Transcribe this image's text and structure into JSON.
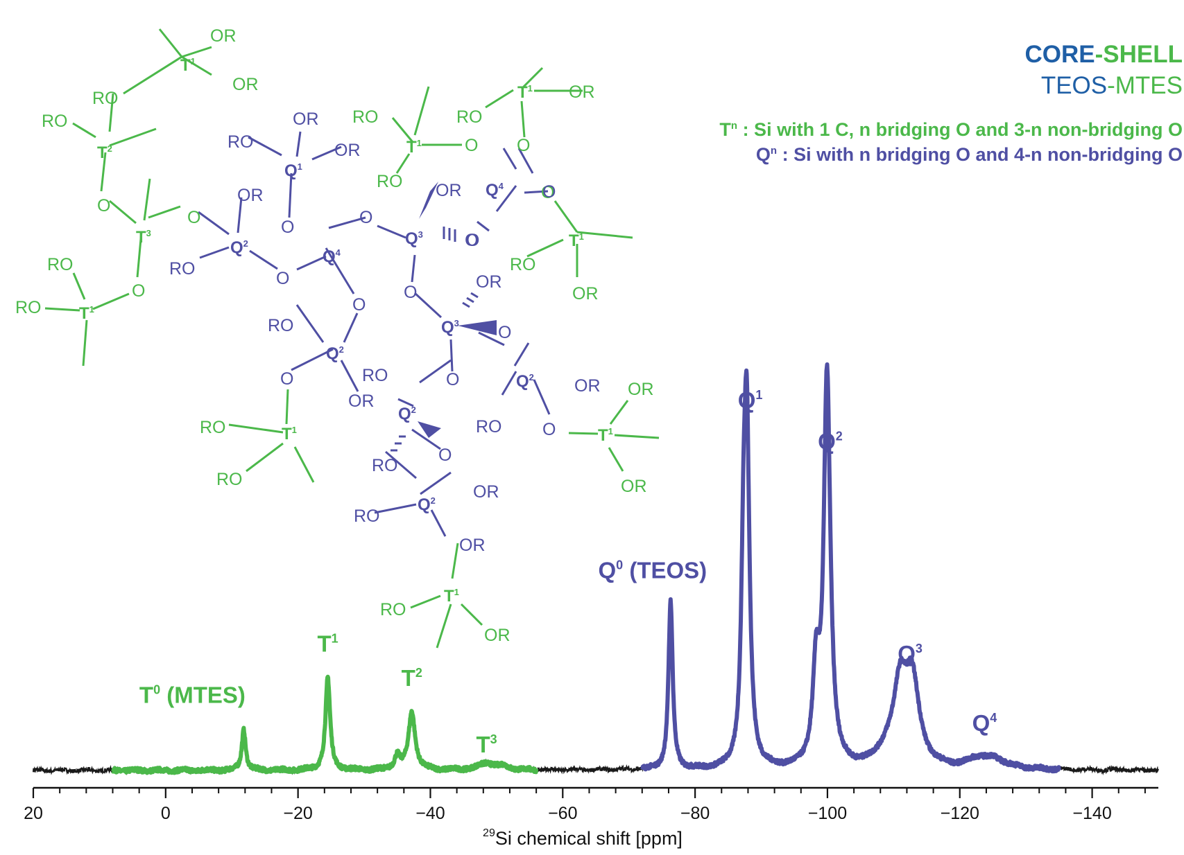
{
  "legend": {
    "title_core": "CORE",
    "title_dash": "-",
    "title_shell": "SHELL",
    "subtitle_a": "TEOS",
    "subtitle_dash": "-",
    "subtitle_b": "MTES",
    "t_def_sym": "T",
    "t_def_sup": "n",
    "t_def_text": " : Si with 1 C, n bridging O and 3-n non-bridging O",
    "q_def_sym": "Q",
    "q_def_sup": "n",
    "q_def_text": " : Si with n bridging O and 4-n non-bridging O"
  },
  "colors": {
    "green": "#4bb84a",
    "blue": "#4f4fa3",
    "title_blue": "#1f5fa6",
    "baseline": "#1a1a1a"
  },
  "chart_data": {
    "type": "line",
    "xlabel_sup": "29",
    "xlabel": "Si chemical shift [ppm]",
    "ylabel": "",
    "xlim": [
      20,
      -150
    ],
    "x_ticks": [
      20,
      0,
      -20,
      -40,
      -60,
      -80,
      -100,
      -120,
      -140
    ],
    "x_tick_labels": [
      "20",
      "0",
      "−20",
      "−40",
      "−60",
      "−80",
      "−100",
      "−120",
      "−140"
    ],
    "ylim": [
      0,
      1
    ],
    "grid": false,
    "segments": [
      {
        "color_key": "green",
        "range": [
          8,
          -56
        ]
      },
      {
        "color_key": "blue",
        "range": [
          -72,
          -135
        ]
      }
    ],
    "peaks": [
      {
        "label": "T",
        "sup": "0",
        "suffix": " (MTES)",
        "color_key": "green",
        "ppm": -11.8,
        "height": 0.12,
        "width": 0.35
      },
      {
        "label": "T",
        "sup": "1",
        "suffix": "",
        "color_key": "green",
        "ppm": -24.5,
        "height": 0.27,
        "width": 0.42
      },
      {
        "label": "T",
        "sup": "2",
        "suffix": "",
        "color_key": "green",
        "ppm": -37.2,
        "height": 0.17,
        "width": 0.6
      },
      {
        "label": "T",
        "sup": "3",
        "suffix": "",
        "color_key": "green",
        "ppm": -48.5,
        "height": 0.02,
        "width": 1.5
      },
      {
        "label": "Q",
        "sup": "0",
        "suffix": " (TEOS)",
        "color_key": "blue",
        "ppm": -76.3,
        "height": 0.49,
        "width": 0.38
      },
      {
        "label": "Q",
        "sup": "1",
        "suffix": "",
        "color_key": "blue",
        "ppm": -87.8,
        "height": 0.99,
        "width": 0.5
      },
      {
        "label": "Q",
        "sup": "2",
        "suffix": "",
        "color_key": "blue",
        "ppm": -100.0,
        "height": 0.87,
        "width": 0.6
      },
      {
        "label": "Q",
        "sup": "3",
        "suffix": "",
        "color_key": "blue",
        "ppm": -112.8,
        "height": 0.24,
        "width": 1.3
      },
      {
        "label": "Q",
        "sup": "4",
        "suffix": "",
        "color_key": "blue",
        "ppm": -125.0,
        "height": 0.03,
        "width": 2.5
      }
    ],
    "shoulders": [
      {
        "color_key": "green",
        "ppm": -35.0,
        "height": 0.04,
        "width": 0.5
      },
      {
        "color_key": "green",
        "ppm": -51.0,
        "height": 0.01,
        "width": 1.0
      },
      {
        "color_key": "blue",
        "ppm": -87.3,
        "height": 0.4,
        "width": 0.4
      },
      {
        "color_key": "blue",
        "ppm": -98.3,
        "height": 0.27,
        "width": 0.6
      },
      {
        "color_key": "blue",
        "ppm": -99.8,
        "height": 0.3,
        "width": 0.5
      },
      {
        "color_key": "blue",
        "ppm": -111.0,
        "height": 0.21,
        "width": 1.2
      },
      {
        "color_key": "blue",
        "ppm": -109.0,
        "height": 0.04,
        "width": 2.0
      },
      {
        "color_key": "blue",
        "ppm": -122.5,
        "height": 0.02,
        "width": 1.5
      }
    ]
  },
  "structure": {
    "ro": "RO",
    "or": "OR",
    "o": "O",
    "t1": "T",
    "s1": "1",
    "t2": "T",
    "s2": "2",
    "t3": "T",
    "s3": "3",
    "q1": "Q",
    "q2": "Q",
    "q3": "Q",
    "q4": "Q",
    "s4": "4"
  }
}
